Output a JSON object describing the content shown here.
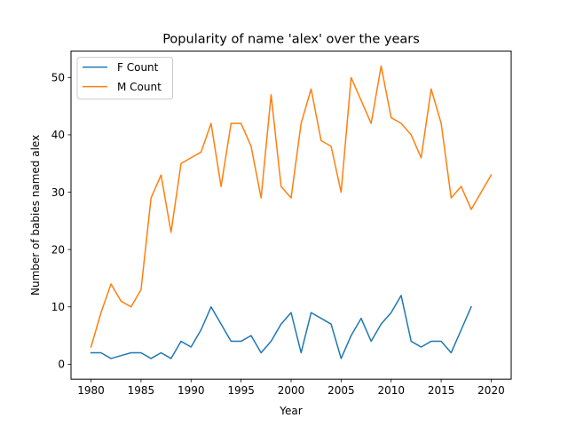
{
  "chart_data": {
    "type": "line",
    "title": "Popularity of name 'alex' over the years",
    "xlabel": "Year",
    "ylabel": "Number of babies named alex",
    "xlim": [
      1978,
      2022
    ],
    "ylim": [
      -2.6,
      54.6
    ],
    "xticks": [
      1980,
      1985,
      1990,
      1995,
      2000,
      2005,
      2010,
      2015,
      2020
    ],
    "yticks": [
      0,
      10,
      20,
      30,
      40,
      50
    ],
    "grid": false,
    "legend_position": "top-left",
    "series": [
      {
        "name": "F Count",
        "color": "#1f77b4",
        "x": [
          1980,
          1981,
          1982,
          1983,
          1984,
          1985,
          1986,
          1987,
          1988,
          1989,
          1990,
          1991,
          1992,
          1993,
          1994,
          1995,
          1996,
          1997,
          1998,
          1999,
          2000,
          2001,
          2002,
          2003,
          2004,
          2005,
          2006,
          2007,
          2008,
          2009,
          2010,
          2011,
          2012,
          2013,
          2014,
          2015,
          2016,
          2017,
          2018
        ],
        "y": [
          2,
          2,
          1,
          1.5,
          2,
          2,
          1,
          2,
          1,
          4,
          3,
          6,
          10,
          7,
          4,
          4,
          5,
          2,
          4,
          7,
          9,
          2,
          9,
          8,
          7,
          1,
          5,
          8,
          4,
          7,
          9,
          12,
          4,
          3,
          4,
          4,
          2,
          6,
          10
        ]
      },
      {
        "name": "M Count",
        "color": "#ff7f0e",
        "x": [
          1980,
          1981,
          1982,
          1983,
          1984,
          1985,
          1986,
          1987,
          1988,
          1989,
          1990,
          1991,
          1992,
          1993,
          1994,
          1995,
          1996,
          1997,
          1998,
          1999,
          2000,
          2001,
          2002,
          2003,
          2004,
          2005,
          2006,
          2007,
          2008,
          2009,
          2010,
          2011,
          2012,
          2013,
          2014,
          2015,
          2016,
          2017,
          2018,
          2020
        ],
        "y": [
          3,
          9,
          14,
          11,
          10,
          13,
          29,
          33,
          23,
          35,
          36,
          37,
          42,
          31,
          42,
          42,
          38,
          29,
          47,
          31,
          29,
          42,
          48,
          39,
          38,
          30,
          50,
          46,
          42,
          52,
          43,
          42,
          40,
          36,
          48,
          42,
          29,
          31,
          27,
          33
        ]
      }
    ]
  }
}
